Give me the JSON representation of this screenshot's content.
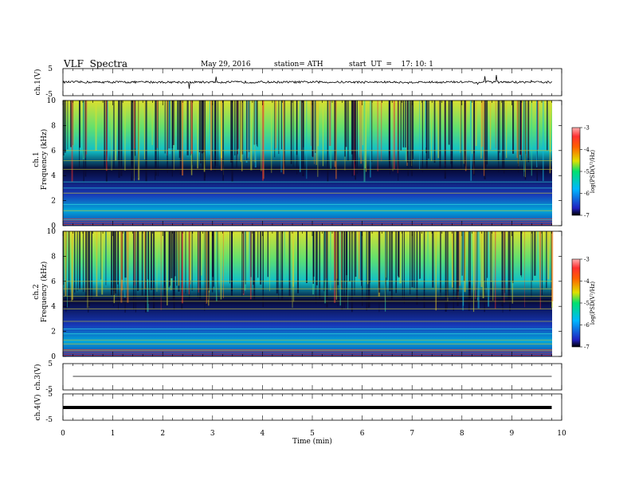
{
  "header": {
    "title": "VLF  Spectra",
    "date": "May 29, 2016",
    "station": "station= ATH",
    "start": "start  UT  =    17: 10: 1"
  },
  "colorbar": {
    "label": "log(PSD(V²/Hz)",
    "ticks": [
      "-3",
      "-4",
      "-5",
      "-6",
      "-7"
    ]
  },
  "palette": {
    "background": "#ffffff",
    "spectrogram_low": "#0a0a55",
    "spectrogram_mid": "#1fd3d3",
    "spectrogram_high": "#e8e800",
    "spectrogram_peak": "#e01818",
    "trace": "#000000"
  },
  "chart_data": [
    {
      "type": "line",
      "panel": "ch1-waveform",
      "ylabel": "ch.1(V)",
      "yticks": [
        "5",
        "-5"
      ],
      "ylim": [
        -5,
        5
      ],
      "x": [
        0,
        1,
        2,
        3,
        4,
        5,
        6,
        7,
        8,
        9,
        9.8
      ],
      "series": [
        {
          "values": [
            0.1,
            -0.2,
            0.1,
            -0.1,
            0.2,
            0.0,
            -0.1,
            0.1,
            -0.2,
            0.0,
            -0.1
          ]
        }
      ]
    },
    {
      "type": "heatmap",
      "panel": "ch1-spectrogram",
      "ylabel": "Frequency  (kHz)",
      "channel": "ch.1",
      "yticks": [
        "0",
        "2",
        "4",
        "6",
        "8",
        "10"
      ],
      "ylim": [
        0,
        10
      ],
      "xlim": [
        0,
        9.8
      ],
      "zlabel": "log(PSD(V²/Hz)",
      "zlim": [
        -7,
        -3
      ],
      "freq_bands_khz": [
        0.5,
        1.2,
        1.7,
        2.6,
        3.0,
        3.5,
        4.5,
        5.2,
        6.0
      ],
      "mean_log_psd_by_freq": [
        {
          "f": 0.5,
          "v": -5.8
        },
        {
          "f": 2.5,
          "v": -6.0
        },
        {
          "f": 4.0,
          "v": -6.8
        },
        {
          "f": 6.0,
          "v": -5.6
        },
        {
          "f": 8.0,
          "v": -4.9
        },
        {
          "f": 9.8,
          "v": -4.5
        }
      ]
    },
    {
      "type": "heatmap",
      "panel": "ch2-spectrogram",
      "ylabel": "Frequency  (kHz)",
      "channel": "ch.2",
      "yticks": [
        "0",
        "2",
        "4",
        "6",
        "8",
        "10"
      ],
      "ylim": [
        0,
        10
      ],
      "xlim": [
        0,
        9.8
      ],
      "zlabel": "log(PSD(V²/Hz)",
      "zlim": [
        -7,
        -3
      ],
      "freq_bands_khz": [
        0.5,
        1.0,
        1.3,
        1.8,
        2.2,
        2.8,
        3.8,
        4.4,
        4.8,
        5.4,
        6.0
      ],
      "mean_log_psd_by_freq": [
        {
          "f": 0.5,
          "v": -5.9
        },
        {
          "f": 2.5,
          "v": -6.1
        },
        {
          "f": 4.0,
          "v": -6.5
        },
        {
          "f": 6.0,
          "v": -5.6
        },
        {
          "f": 8.0,
          "v": -5.0
        },
        {
          "f": 9.8,
          "v": -4.6
        }
      ]
    },
    {
      "type": "line",
      "panel": "ch3-waveform",
      "ylabel": "ch.3(V)",
      "yticks": [
        "5",
        "-5"
      ],
      "ylim": [
        -5,
        5
      ],
      "x": [
        0.2,
        9.8
      ],
      "series": [
        {
          "values": [
            0.0,
            0.0
          ]
        }
      ]
    },
    {
      "type": "line",
      "panel": "ch4-waveform",
      "ylabel": "ch.4(V)",
      "yticks": [
        "5",
        "-5"
      ],
      "ylim": [
        -5,
        5
      ],
      "x": [
        0,
        9.8
      ],
      "series": [
        {
          "values": [
            0.0,
            0.0
          ]
        }
      ]
    }
  ],
  "xaxis": {
    "label": "Time  (min)",
    "ticks": [
      "0",
      "1",
      "2",
      "3",
      "4",
      "5",
      "6",
      "7",
      "8",
      "9",
      "10"
    ],
    "xlim": [
      0,
      10
    ]
  }
}
